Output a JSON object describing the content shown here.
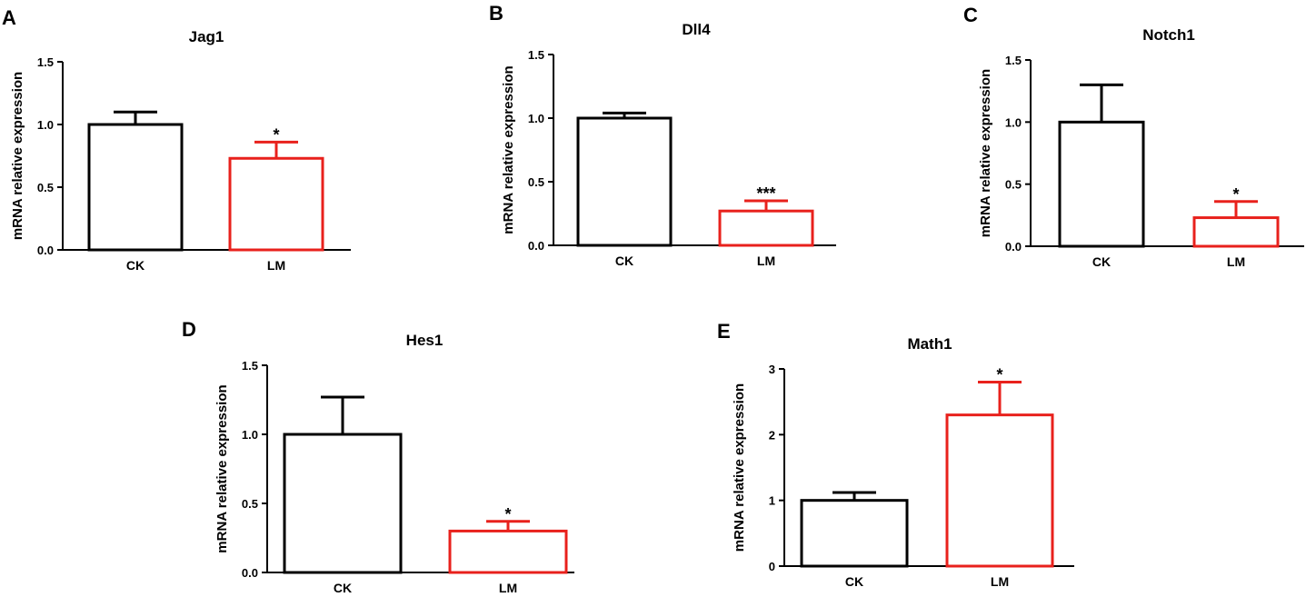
{
  "colors": {
    "ck": "#000000",
    "lm": "#e8211c"
  },
  "chart_data": [
    {
      "panel": "A",
      "type": "bar",
      "title": "Jag1",
      "xlabel": "",
      "ylabel": "mRNA relative expression",
      "categories": [
        "CK",
        "LM"
      ],
      "values": [
        1.0,
        0.73
      ],
      "errors": [
        0.1,
        0.13
      ],
      "significance": [
        "",
        "*"
      ],
      "ylim": [
        0,
        1.5
      ],
      "yticks": [
        "0.0",
        "0.5",
        "1.0",
        "1.5"
      ],
      "ytick_values": [
        0,
        0.5,
        1.0,
        1.5
      ]
    },
    {
      "panel": "B",
      "type": "bar",
      "title": "Dll4",
      "xlabel": "",
      "ylabel": "mRNA relative expression",
      "categories": [
        "CK",
        "LM"
      ],
      "values": [
        1.0,
        0.27
      ],
      "errors": [
        0.04,
        0.08
      ],
      "significance": [
        "",
        "***"
      ],
      "ylim": [
        0,
        1.5
      ],
      "yticks": [
        "0.0",
        "0.5",
        "1.0",
        "1.5"
      ],
      "ytick_values": [
        0,
        0.5,
        1.0,
        1.5
      ]
    },
    {
      "panel": "C",
      "type": "bar",
      "title": "Notch1",
      "xlabel": "",
      "ylabel": "mRNA relative expression",
      "categories": [
        "CK",
        "LM"
      ],
      "values": [
        1.0,
        0.23
      ],
      "errors": [
        0.3,
        0.13
      ],
      "significance": [
        "",
        "*"
      ],
      "ylim": [
        0,
        1.5
      ],
      "yticks": [
        "0.0",
        "0.5",
        "1.0",
        "1.5"
      ],
      "ytick_values": [
        0,
        0.5,
        1.0,
        1.5
      ]
    },
    {
      "panel": "D",
      "type": "bar",
      "title": "Hes1",
      "xlabel": "",
      "ylabel": "mRNA relative expression",
      "categories": [
        "CK",
        "LM"
      ],
      "values": [
        1.0,
        0.3
      ],
      "errors": [
        0.27,
        0.07
      ],
      "significance": [
        "",
        "*"
      ],
      "ylim": [
        0,
        1.5
      ],
      "yticks": [
        "0.0",
        "0.5",
        "1.0",
        "1.5"
      ],
      "ytick_values": [
        0,
        0.5,
        1.0,
        1.5
      ]
    },
    {
      "panel": "E",
      "type": "bar",
      "title": "Math1",
      "xlabel": "",
      "ylabel": "mRNA relative expression",
      "categories": [
        "CK",
        "LM"
      ],
      "values": [
        1.0,
        2.3
      ],
      "errors": [
        0.12,
        0.5
      ],
      "significance": [
        "",
        "*"
      ],
      "ylim": [
        0,
        3
      ],
      "yticks": [
        "0",
        "1",
        "2",
        "3"
      ],
      "ytick_values": [
        0,
        1,
        2,
        3
      ]
    }
  ]
}
